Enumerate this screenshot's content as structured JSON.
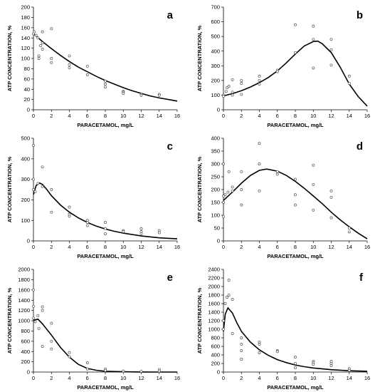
{
  "chart_data": [
    {
      "type": "scatter",
      "panel_label": "a",
      "xlabel": "PARACETAMOL, mg/L",
      "ylabel": "ATP CONCENTRATION, %",
      "xlim": [
        0,
        16
      ],
      "ylim": [
        0,
        200
      ],
      "xticks": [
        0,
        2,
        4,
        6,
        8,
        10,
        12,
        14,
        16
      ],
      "yticks": [
        0,
        20,
        40,
        60,
        80,
        100,
        120,
        140,
        160,
        180,
        200
      ],
      "points": [
        [
          0,
          148
        ],
        [
          0.1,
          152
        ],
        [
          0.3,
          145
        ],
        [
          0.5,
          140
        ],
        [
          0.6,
          105
        ],
        [
          0.6,
          100
        ],
        [
          0.8,
          125
        ],
        [
          1,
          152
        ],
        [
          1,
          130
        ],
        [
          1,
          118
        ],
        [
          2,
          158
        ],
        [
          2,
          100
        ],
        [
          2,
          92
        ],
        [
          4,
          105
        ],
        [
          4,
          88
        ],
        [
          4,
          82
        ],
        [
          6,
          85
        ],
        [
          6,
          68
        ],
        [
          8,
          56
        ],
        [
          8,
          50
        ],
        [
          8,
          44
        ],
        [
          10,
          36
        ],
        [
          10,
          34
        ],
        [
          10,
          32
        ],
        [
          12,
          30
        ],
        [
          12,
          28
        ],
        [
          14,
          30
        ],
        [
          14,
          28
        ]
      ],
      "fit": [
        [
          0,
          148
        ],
        [
          1,
          133
        ],
        [
          2,
          119
        ],
        [
          3,
          106
        ],
        [
          4,
          94
        ],
        [
          5,
          83
        ],
        [
          6,
          74
        ],
        [
          7,
          65
        ],
        [
          8,
          57
        ],
        [
          9,
          50
        ],
        [
          10,
          43
        ],
        [
          11,
          37
        ],
        [
          12,
          32
        ],
        [
          13,
          27
        ],
        [
          14,
          23
        ],
        [
          15,
          20
        ],
        [
          16,
          17
        ]
      ]
    },
    {
      "type": "scatter",
      "panel_label": "b",
      "xlabel": "PARACETAMOL, mg/L",
      "ylabel": "ATP CONCENTRATION, %",
      "xlim": [
        0,
        16
      ],
      "ylim": [
        0,
        700
      ],
      "xticks": [
        0,
        2,
        4,
        6,
        8,
        10,
        12,
        14,
        16
      ],
      "yticks": [
        0,
        100,
        200,
        300,
        400,
        500,
        600,
        700
      ],
      "points": [
        [
          0,
          100
        ],
        [
          0,
          92
        ],
        [
          0.3,
          125
        ],
        [
          0.4,
          150
        ],
        [
          0.6,
          160
        ],
        [
          1,
          205
        ],
        [
          1,
          120
        ],
        [
          1,
          100
        ],
        [
          2,
          200
        ],
        [
          2,
          180
        ],
        [
          2,
          105
        ],
        [
          4,
          230
        ],
        [
          4,
          200
        ],
        [
          4,
          175
        ],
        [
          6,
          270
        ],
        [
          6,
          260
        ],
        [
          8,
          580
        ],
        [
          8,
          390
        ],
        [
          10,
          570
        ],
        [
          10,
          480
        ],
        [
          10,
          285
        ],
        [
          12,
          480
        ],
        [
          12,
          410
        ],
        [
          12,
          305
        ],
        [
          14,
          230
        ],
        [
          14,
          180
        ]
      ],
      "fit": [
        [
          0,
          95
        ],
        [
          1,
          110
        ],
        [
          2,
          130
        ],
        [
          3,
          155
        ],
        [
          4,
          185
        ],
        [
          5,
          220
        ],
        [
          6,
          265
        ],
        [
          7,
          320
        ],
        [
          8,
          380
        ],
        [
          9,
          435
        ],
        [
          10,
          465
        ],
        [
          10.5,
          468
        ],
        [
          11,
          450
        ],
        [
          12,
          390
        ],
        [
          13,
          290
        ],
        [
          14,
          175
        ],
        [
          15,
          90
        ],
        [
          16,
          25
        ]
      ]
    },
    {
      "type": "scatter",
      "panel_label": "c",
      "xlabel": "PARACETAMOL, mg/L",
      "ylabel": "ATP CONCENTRATION, %",
      "xlim": [
        0,
        16
      ],
      "ylim": [
        0,
        500
      ],
      "xticks": [
        0,
        2,
        4,
        6,
        8,
        10,
        12,
        14,
        16
      ],
      "yticks": [
        0,
        100,
        200,
        300,
        400,
        500
      ],
      "points": [
        [
          0,
          465
        ],
        [
          0,
          300
        ],
        [
          0,
          250
        ],
        [
          0.2,
          240
        ],
        [
          0.5,
          280
        ],
        [
          1,
          360
        ],
        [
          1,
          265
        ],
        [
          2,
          250
        ],
        [
          2,
          140
        ],
        [
          4,
          165
        ],
        [
          4,
          130
        ],
        [
          4,
          120
        ],
        [
          6,
          100
        ],
        [
          6,
          90
        ],
        [
          6,
          75
        ],
        [
          8,
          90
        ],
        [
          8,
          60
        ],
        [
          8,
          35
        ],
        [
          10,
          50
        ],
        [
          10,
          45
        ],
        [
          12,
          60
        ],
        [
          12,
          45
        ],
        [
          12,
          35
        ],
        [
          14,
          50
        ],
        [
          14,
          40
        ]
      ],
      "fit": [
        [
          0,
          225
        ],
        [
          0.3,
          270
        ],
        [
          0.7,
          282
        ],
        [
          1,
          275
        ],
        [
          1.5,
          250
        ],
        [
          2,
          220
        ],
        [
          3,
          175
        ],
        [
          4,
          140
        ],
        [
          5,
          112
        ],
        [
          6,
          90
        ],
        [
          7,
          72
        ],
        [
          8,
          58
        ],
        [
          9,
          47
        ],
        [
          10,
          38
        ],
        [
          12,
          24
        ],
        [
          14,
          15
        ],
        [
          16,
          10
        ]
      ]
    },
    {
      "type": "scatter",
      "panel_label": "d",
      "xlabel": "PARACETAMOL, mg/L",
      "ylabel": "ATP CONCENTRATION, %",
      "xlim": [
        0,
        16
      ],
      "ylim": [
        0,
        400
      ],
      "xticks": [
        0,
        2,
        4,
        6,
        8,
        10,
        12,
        14,
        16
      ],
      "yticks": [
        0,
        50,
        100,
        150,
        200,
        250,
        300,
        350,
        400
      ],
      "points": [
        [
          0,
          300
        ],
        [
          0,
          175
        ],
        [
          0,
          150
        ],
        [
          0,
          95
        ],
        [
          0.2,
          180
        ],
        [
          0.5,
          190
        ],
        [
          0.6,
          270
        ],
        [
          1,
          210
        ],
        [
          1,
          195
        ],
        [
          2,
          270
        ],
        [
          2,
          200
        ],
        [
          2,
          140
        ],
        [
          4,
          380
        ],
        [
          4,
          300
        ],
        [
          4,
          195
        ],
        [
          6,
          260
        ],
        [
          6,
          270
        ],
        [
          8,
          240
        ],
        [
          8,
          180
        ],
        [
          8,
          140
        ],
        [
          10,
          295
        ],
        [
          10,
          220
        ],
        [
          10,
          120
        ],
        [
          12,
          195
        ],
        [
          12,
          170
        ],
        [
          12,
          90
        ],
        [
          14,
          50
        ],
        [
          14,
          35
        ]
      ],
      "fit": [
        [
          0,
          158
        ],
        [
          1,
          190
        ],
        [
          2,
          225
        ],
        [
          3,
          255
        ],
        [
          4,
          275
        ],
        [
          4.8,
          280
        ],
        [
          6,
          272
        ],
        [
          7,
          255
        ],
        [
          8,
          232
        ],
        [
          9,
          205
        ],
        [
          10,
          175
        ],
        [
          11,
          145
        ],
        [
          12,
          112
        ],
        [
          13,
          82
        ],
        [
          14,
          55
        ],
        [
          15,
          30
        ],
        [
          16,
          8
        ]
      ]
    },
    {
      "type": "scatter",
      "panel_label": "e",
      "xlabel": "PARACETAMOL, mg/L",
      "ylabel": "ATP CONCENTRATION, %",
      "xlim": [
        0,
        16
      ],
      "ylim": [
        0,
        2000
      ],
      "xticks": [
        0,
        2,
        4,
        6,
        8,
        10,
        12,
        14,
        16
      ],
      "yticks": [
        0,
        200,
        400,
        600,
        800,
        1000,
        1200,
        1400,
        1600,
        1800,
        2000
      ],
      "points": [
        [
          0,
          1600
        ],
        [
          0,
          1280
        ],
        [
          0,
          1050
        ],
        [
          0.2,
          980
        ],
        [
          0.5,
          1100
        ],
        [
          0.6,
          850
        ],
        [
          1,
          1270
        ],
        [
          1,
          1200
        ],
        [
          1,
          500
        ],
        [
          2,
          950
        ],
        [
          2,
          600
        ],
        [
          2,
          450
        ],
        [
          4,
          380
        ],
        [
          4,
          300
        ],
        [
          6,
          180
        ],
        [
          6,
          60
        ],
        [
          8,
          60
        ],
        [
          8,
          30
        ],
        [
          10,
          20
        ],
        [
          12,
          15
        ],
        [
          14,
          50
        ],
        [
          14,
          20
        ]
      ],
      "fit": [
        [
          0,
          1010
        ],
        [
          0.5,
          1030
        ],
        [
          1,
          940
        ],
        [
          2,
          720
        ],
        [
          3,
          480
        ],
        [
          4,
          290
        ],
        [
          5,
          150
        ],
        [
          6,
          70
        ],
        [
          7,
          35
        ],
        [
          8,
          15
        ],
        [
          10,
          5
        ],
        [
          12,
          2
        ],
        [
          14,
          0
        ],
        [
          16,
          0
        ]
      ]
    },
    {
      "type": "scatter",
      "panel_label": "f",
      "xlabel": "PARACETAMOL, mg/L",
      "ylabel": "ATP CONCENTRATION, %",
      "xlim": [
        0,
        16
      ],
      "ylim": [
        0,
        2400
      ],
      "xticks": [
        0,
        2,
        4,
        6,
        8,
        10,
        12,
        14,
        16
      ],
      "yticks": [
        0,
        200,
        400,
        600,
        800,
        1000,
        1200,
        1400,
        1600,
        1800,
        2000,
        2200,
        2400
      ],
      "points": [
        [
          0,
          1200
        ],
        [
          0,
          1000
        ],
        [
          0.2,
          1600
        ],
        [
          0.4,
          1750
        ],
        [
          0.6,
          2150
        ],
        [
          0.6,
          1800
        ],
        [
          1,
          1700
        ],
        [
          1,
          900
        ],
        [
          2,
          800
        ],
        [
          2,
          650
        ],
        [
          2,
          500
        ],
        [
          2,
          300
        ],
        [
          4,
          700
        ],
        [
          4,
          650
        ],
        [
          4,
          450
        ],
        [
          6,
          500
        ],
        [
          6,
          480
        ],
        [
          8,
          350
        ],
        [
          8,
          200
        ],
        [
          8,
          100
        ],
        [
          10,
          250
        ],
        [
          10,
          220
        ],
        [
          10,
          180
        ],
        [
          12,
          250
        ],
        [
          12,
          200
        ],
        [
          12,
          150
        ],
        [
          14,
          80
        ],
        [
          14,
          40
        ]
      ],
      "fit": [
        [
          0,
          950
        ],
        [
          0.2,
          1350
        ],
        [
          0.5,
          1500
        ],
        [
          1,
          1380
        ],
        [
          1.5,
          1150
        ],
        [
          2,
          950
        ],
        [
          3,
          700
        ],
        [
          4,
          520
        ],
        [
          5,
          390
        ],
        [
          6,
          290
        ],
        [
          7,
          220
        ],
        [
          8,
          165
        ],
        [
          9,
          125
        ],
        [
          10,
          95
        ],
        [
          12,
          55
        ],
        [
          14,
          30
        ],
        [
          16,
          18
        ]
      ]
    }
  ]
}
